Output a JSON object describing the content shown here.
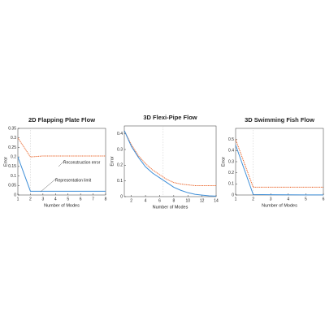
{
  "chart_data": [
    {
      "type": "line",
      "title": "2D Flapping Plate Flow",
      "xlabel": "Number of Modes",
      "ylabel": "Error",
      "x": [
        1,
        2,
        3,
        4,
        5,
        6,
        7,
        8
      ],
      "series": [
        {
          "name": "Reconstruction error",
          "color": "#e8591a",
          "style": "dotted",
          "values": [
            0.3,
            0.2,
            0.205,
            0.205,
            0.205,
            0.205,
            0.205,
            0.205
          ]
        },
        {
          "name": "Representation limit",
          "color": "#3f8fd8",
          "style": "solid",
          "values": [
            0.2,
            0.02,
            0.02,
            0.02,
            0.02,
            0.02,
            0.02,
            0.02
          ]
        }
      ],
      "xlim": [
        1,
        8
      ],
      "ylim": [
        0,
        0.35
      ],
      "xticks": [
        1,
        2,
        3,
        4,
        5,
        6,
        7,
        8
      ],
      "yticks": [
        0,
        0.05,
        0.1,
        0.15,
        0.2,
        0.25,
        0.3,
        0.35
      ],
      "vline": 2
    },
    {
      "type": "line",
      "title": "3D Flexi-Pipe Flow",
      "xlabel": "Number of Modes",
      "ylabel": "Error",
      "x": [
        1,
        2,
        3,
        4,
        5,
        6,
        7,
        8,
        9,
        10,
        11,
        12,
        13,
        14
      ],
      "series": [
        {
          "color": "#e8591a",
          "style": "dotted",
          "values": [
            0.42,
            0.33,
            0.26,
            0.21,
            0.17,
            0.14,
            0.11,
            0.09,
            0.08,
            0.075,
            0.07,
            0.07,
            0.07,
            0.07
          ]
        },
        {
          "color": "#3f8fd8",
          "style": "solid",
          "values": [
            0.42,
            0.32,
            0.25,
            0.19,
            0.15,
            0.12,
            0.09,
            0.06,
            0.04,
            0.025,
            0.015,
            0.01,
            0.005,
            0.003
          ]
        }
      ],
      "xlim": [
        1,
        14
      ],
      "ylim": [
        0,
        0.45
      ],
      "xticks": [
        2,
        4,
        6,
        8,
        10,
        12,
        14
      ],
      "yticks": [
        0,
        0.1,
        0.2,
        0.3,
        0.4
      ],
      "vline": 6.5
    },
    {
      "type": "line",
      "title": "3D Swimming Fish Flow",
      "xlabel": "Number of Modes",
      "ylabel": "Error",
      "x": [
        1,
        2,
        3,
        4,
        5,
        6
      ],
      "series": [
        {
          "color": "#e8591a",
          "style": "dotted",
          "values": [
            0.5,
            0.07,
            0.07,
            0.07,
            0.07,
            0.07
          ]
        },
        {
          "color": "#3f8fd8",
          "style": "solid",
          "values": [
            0.45,
            0.005,
            0.003,
            0.002,
            0.001,
            0.001
          ]
        }
      ],
      "xlim": [
        1,
        6
      ],
      "ylim": [
        0,
        0.6
      ],
      "xticks": [
        1,
        2,
        3,
        4,
        5,
        6
      ],
      "yticks": [
        0,
        0.1,
        0.2,
        0.3,
        0.4,
        0.5
      ],
      "vline": 2
    }
  ]
}
